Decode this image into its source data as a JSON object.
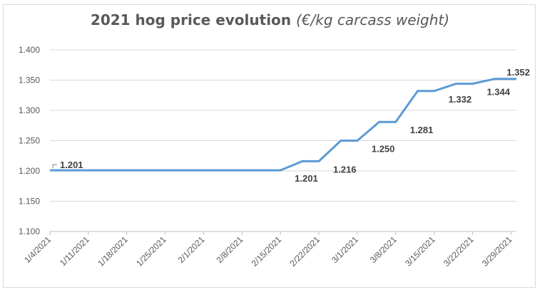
{
  "chart_data": {
    "type": "line",
    "title_main": "2021 hog price evolution",
    "title_unit": "(€/kg carcass weight)",
    "xlabel": "",
    "ylabel": "",
    "ylim": [
      1.1,
      1.4
    ],
    "yticks": [
      "1.100",
      "1.150",
      "1.200",
      "1.250",
      "1.300",
      "1.350",
      "1.400"
    ],
    "ytick_values": [
      1.1,
      1.15,
      1.2,
      1.25,
      1.3,
      1.35,
      1.4
    ],
    "xlim": [
      0,
      85
    ],
    "xticks": [
      {
        "label": "1/4/2021",
        "day": 0
      },
      {
        "label": "1/11/2021",
        "day": 7
      },
      {
        "label": "1/18/2021",
        "day": 14
      },
      {
        "label": "1/25/2021",
        "day": 21
      },
      {
        "label": "2/1/2021",
        "day": 28
      },
      {
        "label": "2/8/2021",
        "day": 35
      },
      {
        "label": "2/15/2021",
        "day": 42
      },
      {
        "label": "2/22/2021",
        "day": 49
      },
      {
        "label": "3/1/2021",
        "day": 56
      },
      {
        "label": "3/8/2021",
        "day": 63
      },
      {
        "label": "3/15/2021",
        "day": 70
      },
      {
        "label": "3/22/2021",
        "day": 77
      },
      {
        "label": "3/29/2021",
        "day": 84
      }
    ],
    "series": [
      {
        "name": "Hog price",
        "color": "#5b9bd5",
        "points": [
          {
            "day": 0,
            "value": 1.201
          },
          {
            "day": 42,
            "value": 1.201
          },
          {
            "day": 46,
            "value": 1.216
          },
          {
            "day": 49,
            "value": 1.216
          },
          {
            "day": 53,
            "value": 1.25
          },
          {
            "day": 56,
            "value": 1.25
          },
          {
            "day": 60,
            "value": 1.281
          },
          {
            "day": 63,
            "value": 1.281
          },
          {
            "day": 67,
            "value": 1.332
          },
          {
            "day": 70,
            "value": 1.332
          },
          {
            "day": 74,
            "value": 1.344
          },
          {
            "day": 77,
            "value": 1.344
          },
          {
            "day": 81,
            "value": 1.352
          },
          {
            "day": 85,
            "value": 1.352
          }
        ]
      }
    ],
    "data_labels": [
      {
        "text": "1.201",
        "day": 0,
        "value": 1.201,
        "pos": "right-above"
      },
      {
        "text": "1.201",
        "day": 42,
        "value": 1.201,
        "pos": "right-below"
      },
      {
        "text": "1.216",
        "day": 49,
        "value": 1.216,
        "pos": "right-below"
      },
      {
        "text": "1.250",
        "day": 56,
        "value": 1.25,
        "pos": "right-below"
      },
      {
        "text": "1.281",
        "day": 63,
        "value": 1.281,
        "pos": "right-below"
      },
      {
        "text": "1.332",
        "day": 70,
        "value": 1.332,
        "pos": "right-below"
      },
      {
        "text": "1.344",
        "day": 77,
        "value": 1.344,
        "pos": "right-below"
      },
      {
        "text": "1.352",
        "day": 84,
        "value": 1.352,
        "pos": "above"
      }
    ],
    "grid": true
  }
}
